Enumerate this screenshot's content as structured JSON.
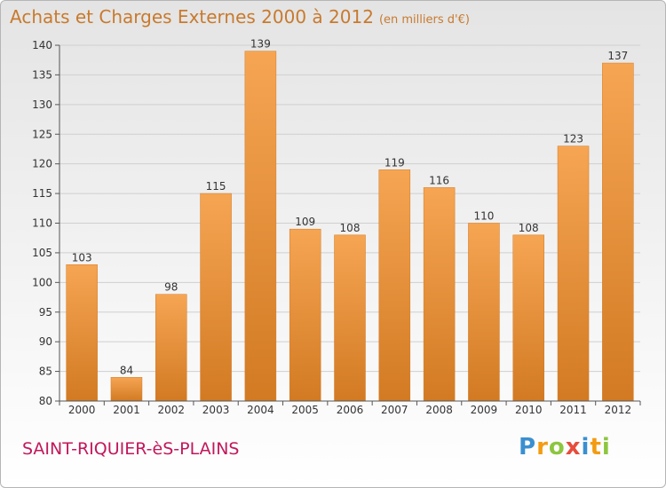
{
  "header": {
    "title": "Achats et Charges Externes 2000 à 2012",
    "unit": "(en milliers d'€)"
  },
  "footer": {
    "town": "SAINT-RIQUIER-èS-PLAINS",
    "logo_letters": [
      "P",
      "r",
      "o",
      "x",
      "i",
      "t",
      "i"
    ],
    "logo_colors": [
      "#3a8fd0",
      "#f39c12",
      "#8dc63f",
      "#e74c3c",
      "#3a8fd0",
      "#f39c12",
      "#8dc63f"
    ]
  },
  "colors": {
    "bar_light": "#f6a553",
    "bar_dark": "#d27a23",
    "title": "#c87a2e",
    "town": "#c2185b"
  },
  "chart_data": {
    "type": "bar",
    "title": "Achats et Charges Externes 2000 à 2012",
    "subtitle": "(en milliers d'€)",
    "xlabel": "",
    "ylabel": "",
    "categories": [
      "2000",
      "2001",
      "2002",
      "2003",
      "2004",
      "2005",
      "2006",
      "2007",
      "2008",
      "2009",
      "2010",
      "2011",
      "2012"
    ],
    "values": [
      103,
      84,
      98,
      115,
      139,
      109,
      108,
      119,
      116,
      110,
      108,
      123,
      137
    ],
    "ylim": [
      80,
      140
    ],
    "yticks": [
      80,
      85,
      90,
      95,
      100,
      105,
      110,
      115,
      120,
      125,
      130,
      135,
      140
    ],
    "grid": true
  }
}
